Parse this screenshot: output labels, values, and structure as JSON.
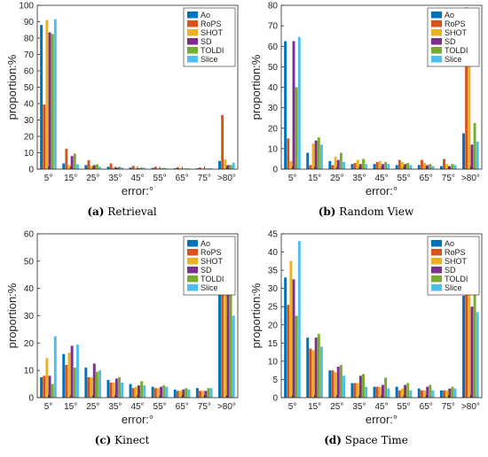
{
  "colors": {
    "Ao": "#0072BD",
    "RoPS": "#D95319",
    "SHOT": "#EDB120",
    "SD": "#7E2F8E",
    "TOLDI": "#77AC30",
    "Slice": "#4DBEEE"
  },
  "chart_data": [
    {
      "type": "bar",
      "panel_label": "(a)",
      "caption": "Retrieval",
      "xlabel": "error:°",
      "ylabel": "proportion:%",
      "categories": [
        "5°",
        "15°",
        "25°",
        "35°",
        "45°",
        "55°",
        "65°",
        "75°",
        ">80°"
      ],
      "ylim": [
        0,
        100
      ],
      "yticks": [
        0,
        10,
        20,
        30,
        40,
        50,
        60,
        70,
        80,
        90,
        100
      ],
      "legend_position": "top-right",
      "grid": false,
      "series": [
        {
          "name": "Ao",
          "values": [
            88,
            3.5,
            2.5,
            1.5,
            1,
            0.8,
            0.6,
            0.5,
            5
          ]
        },
        {
          "name": "RoPS",
          "values": [
            39.5,
            12.5,
            5.5,
            3.5,
            2,
            1.5,
            1.2,
            1,
            33
          ]
        },
        {
          "name": "SHOT",
          "values": [
            91,
            2.5,
            2,
            1,
            0.8,
            0.6,
            0.5,
            0.5,
            6
          ]
        },
        {
          "name": "SD",
          "values": [
            83.5,
            8,
            2.5,
            1,
            0.5,
            0.4,
            0.3,
            0.3,
            2.5
          ]
        },
        {
          "name": "TOLDI",
          "values": [
            82.5,
            9.5,
            3,
            1.5,
            1,
            0.8,
            0.5,
            0.5,
            2.5
          ]
        },
        {
          "name": "Slice",
          "values": [
            91.5,
            3,
            1.5,
            1,
            0.8,
            0.5,
            0.5,
            0.5,
            4
          ]
        }
      ]
    },
    {
      "type": "bar",
      "panel_label": "(b)",
      "caption": "Random View",
      "xlabel": "error:°",
      "ylabel": "proportion:%",
      "categories": [
        "5°",
        "15°",
        "25°",
        "35°",
        "45°",
        "55°",
        "65°",
        "75°",
        ">80°"
      ],
      "ylim": [
        0,
        80
      ],
      "yticks": [
        0,
        10,
        20,
        30,
        40,
        50,
        60,
        70,
        80
      ],
      "legend_position": "top-right",
      "grid": false,
      "series": [
        {
          "name": "Ao",
          "values": [
            62.5,
            8,
            4,
            2.5,
            2.5,
            2,
            2,
            1.5,
            17.5
          ]
        },
        {
          "name": "RoPS",
          "values": [
            15,
            2,
            2,
            3,
            3.5,
            4.5,
            4.5,
            5,
            79
          ]
        },
        {
          "name": "SHOT",
          "values": [
            4,
            12.5,
            6,
            4.5,
            4,
            3.5,
            3,
            2.5,
            54
          ]
        },
        {
          "name": "SD",
          "values": [
            62.5,
            14,
            4.5,
            2.5,
            2.5,
            2.5,
            2,
            1.5,
            12
          ]
        },
        {
          "name": "TOLDI",
          "values": [
            40,
            15.5,
            8,
            5,
            3.5,
            3,
            2.5,
            2.5,
            22.5
          ]
        },
        {
          "name": "Slice",
          "values": [
            64.5,
            12,
            3.5,
            2.5,
            2.5,
            2,
            1.5,
            2,
            13.5
          ]
        }
      ]
    },
    {
      "type": "bar",
      "panel_label": "(c)",
      "caption": "Kinect",
      "xlabel": "error:°",
      "ylabel": "proportion:%",
      "categories": [
        "5°",
        "15°",
        "25°",
        "35°",
        "45°",
        "55°",
        "65°",
        "75°",
        ">80°"
      ],
      "ylim": [
        0,
        60
      ],
      "yticks": [
        0,
        10,
        20,
        30,
        40,
        50,
        60
      ],
      "legend_position": "top-right",
      "grid": false,
      "series": [
        {
          "name": "Ao",
          "values": [
            7.5,
            16,
            11,
            6.5,
            5,
            4,
            3,
            3.5,
            43
          ]
        },
        {
          "name": "RoPS",
          "values": [
            8,
            12,
            7.5,
            5.5,
            3.5,
            3.5,
            2.5,
            2.5,
            56
          ]
        },
        {
          "name": "SHOT",
          "values": [
            14.5,
            16.5,
            7.5,
            5.5,
            4,
            3.5,
            2.5,
            2.5,
            43.5
          ]
        },
        {
          "name": "SD",
          "values": [
            8,
            19,
            12.5,
            7,
            4.5,
            4,
            3,
            2.5,
            38.5
          ]
        },
        {
          "name": "TOLDI",
          "values": [
            5,
            11,
            9.5,
            7.5,
            6,
            4.5,
            3.5,
            3.5,
            48.5
          ]
        },
        {
          "name": "Slice",
          "values": [
            22.5,
            19.5,
            10,
            5.5,
            4.5,
            4,
            3,
            3.5,
            30
          ]
        }
      ]
    },
    {
      "type": "bar",
      "panel_label": "(d)",
      "caption": "Space Time",
      "xlabel": "error:°",
      "ylabel": "proportion:%",
      "categories": [
        "5°",
        "15°",
        "25°",
        "35°",
        "45°",
        "55°",
        "65°",
        "75°",
        ">80°"
      ],
      "ylim": [
        0,
        45
      ],
      "yticks": [
        0,
        5,
        10,
        15,
        20,
        25,
        30,
        35,
        40,
        45
      ],
      "legend_position": "top-right",
      "grid": false,
      "series": [
        {
          "name": "Ao",
          "values": [
            33,
            16.5,
            7.5,
            4,
            3,
            3,
            2.5,
            2,
            28
          ]
        },
        {
          "name": "RoPS",
          "values": [
            25.5,
            13.5,
            7.5,
            4,
            3,
            2,
            2,
            2,
            41
          ]
        },
        {
          "name": "SHOT",
          "values": [
            37.5,
            13,
            7,
            4,
            3,
            2.5,
            2,
            2,
            30.5
          ]
        },
        {
          "name": "SD",
          "values": [
            32.5,
            16.5,
            8.5,
            6,
            3.5,
            3.5,
            3,
            2.5,
            25
          ]
        },
        {
          "name": "TOLDI",
          "values": [
            22.5,
            17.5,
            9,
            6.5,
            5.5,
            4,
            3.5,
            3,
            30
          ]
        },
        {
          "name": "Slice",
          "values": [
            43,
            14,
            6,
            3,
            2.5,
            2,
            2,
            2.5,
            23.5
          ]
        }
      ]
    }
  ]
}
